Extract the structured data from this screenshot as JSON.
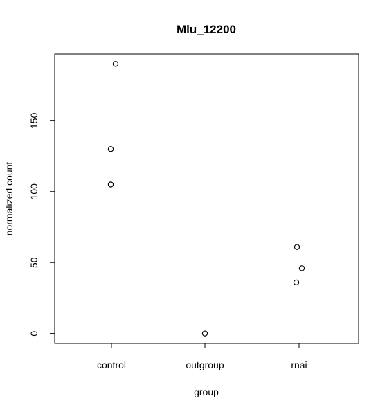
{
  "chart_data": {
    "type": "scatter",
    "title": "Mlu_12200",
    "xlabel": "group",
    "ylabel": "normalized count",
    "categories": [
      "control",
      "outgroup",
      "rnai"
    ],
    "yticks": [
      0,
      50,
      100,
      150
    ],
    "ylim": [
      -7,
      197
    ],
    "grid": false,
    "points": [
      {
        "category": "control",
        "y": 190
      },
      {
        "category": "control",
        "y": 130
      },
      {
        "category": "control",
        "y": 105
      },
      {
        "category": "outgroup",
        "y": 0
      },
      {
        "category": "rnai",
        "y": 61
      },
      {
        "category": "rnai",
        "y": 46
      },
      {
        "category": "rnai",
        "y": 36
      }
    ]
  }
}
